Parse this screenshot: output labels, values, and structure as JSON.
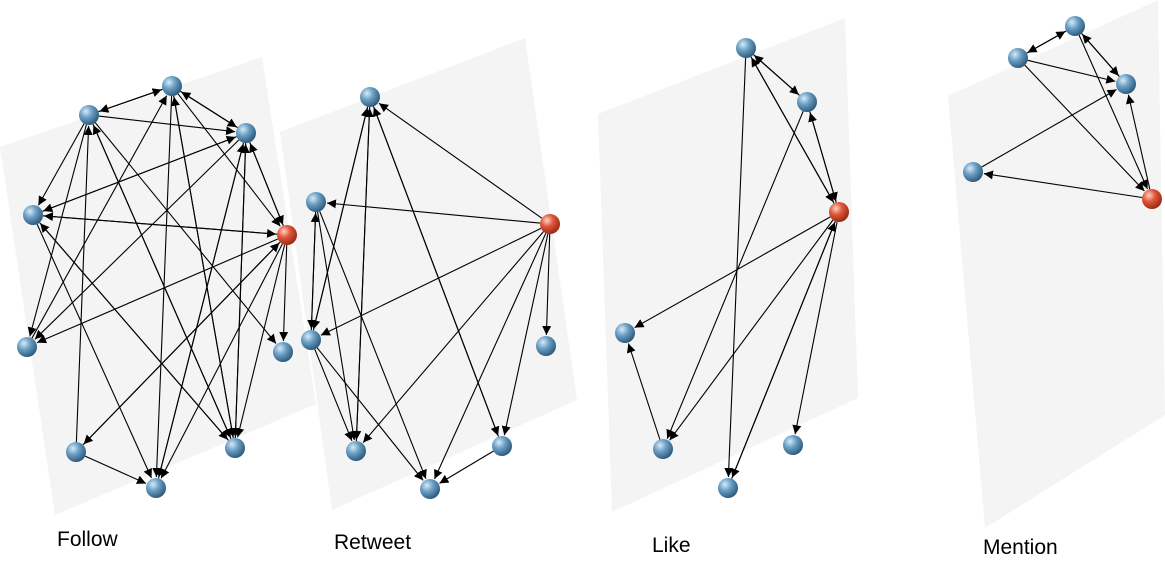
{
  "colors": {
    "regular_node": "#5b8db0",
    "focal_node": "#e0563a",
    "edge": "#000000",
    "plane": "#f4f4f4"
  },
  "panels": [
    {
      "id": "follow",
      "label": "Follow",
      "nodes": [
        {
          "id": "f1"
        },
        {
          "id": "f2"
        },
        {
          "id": "f3"
        },
        {
          "id": "f4"
        },
        {
          "id": "f5",
          "focal": true
        },
        {
          "id": "f6"
        },
        {
          "id": "f7"
        },
        {
          "id": "f8"
        },
        {
          "id": "f9"
        },
        {
          "id": "f10"
        }
      ],
      "edges": [
        [
          "f1",
          "f2"
        ],
        [
          "f1",
          "f3"
        ],
        [
          "f1",
          "f4"
        ],
        [
          "f1",
          "f7"
        ],
        [
          "f1",
          "f9"
        ],
        [
          "f1",
          "f6"
        ],
        [
          "f2",
          "f3"
        ],
        [
          "f2",
          "f10"
        ],
        [
          "f2",
          "f9"
        ],
        [
          "f2",
          "f1"
        ],
        [
          "f2",
          "f5"
        ],
        [
          "f3",
          "f4"
        ],
        [
          "f3",
          "f6"
        ],
        [
          "f3",
          "f9"
        ],
        [
          "f3",
          "f10"
        ],
        [
          "f3",
          "f2"
        ],
        [
          "f3",
          "f5"
        ],
        [
          "f4",
          "f3"
        ],
        [
          "f4",
          "f5"
        ],
        [
          "f4",
          "f10"
        ],
        [
          "f4",
          "f9"
        ],
        [
          "f5",
          "f6"
        ],
        [
          "f5",
          "f3"
        ],
        [
          "f5",
          "f7"
        ],
        [
          "f5",
          "f9"
        ],
        [
          "f5",
          "f10"
        ],
        [
          "f5",
          "f8"
        ],
        [
          "f5",
          "f4"
        ],
        [
          "f8",
          "f5"
        ],
        [
          "f8",
          "f10"
        ],
        [
          "f8",
          "f1"
        ],
        [
          "f9",
          "f4"
        ],
        [
          "f9",
          "f1"
        ],
        [
          "f9",
          "f2"
        ],
        [
          "f9",
          "f3"
        ],
        [
          "f6",
          "f2"
        ],
        [
          "f10",
          "f3"
        ]
      ]
    },
    {
      "id": "retweet",
      "label": "Retweet",
      "nodes": [
        {
          "id": "r1"
        },
        {
          "id": "r2"
        },
        {
          "id": "r3",
          "focal": true
        },
        {
          "id": "r4"
        },
        {
          "id": "r5"
        },
        {
          "id": "r6"
        },
        {
          "id": "r7"
        },
        {
          "id": "r8"
        }
      ],
      "edges": [
        [
          "r3",
          "r1"
        ],
        [
          "r3",
          "r2"
        ],
        [
          "r3",
          "r4"
        ],
        [
          "r3",
          "r5"
        ],
        [
          "r3",
          "r6"
        ],
        [
          "r3",
          "r7"
        ],
        [
          "r3",
          "r8"
        ],
        [
          "r1",
          "r6"
        ],
        [
          "r1",
          "r7"
        ],
        [
          "r1",
          "r4"
        ],
        [
          "r2",
          "r6"
        ],
        [
          "r2",
          "r8"
        ],
        [
          "r2",
          "r4"
        ],
        [
          "r4",
          "r2"
        ],
        [
          "r4",
          "r1"
        ],
        [
          "r4",
          "r6"
        ],
        [
          "r4",
          "r8"
        ],
        [
          "r6",
          "r1"
        ],
        [
          "r7",
          "r8"
        ],
        [
          "r7",
          "r1"
        ]
      ]
    },
    {
      "id": "like",
      "label": "Like",
      "nodes": [
        {
          "id": "l1"
        },
        {
          "id": "l2"
        },
        {
          "id": "l3",
          "focal": true
        },
        {
          "id": "l4"
        },
        {
          "id": "l5"
        },
        {
          "id": "l6"
        },
        {
          "id": "l7"
        }
      ],
      "edges": [
        [
          "l1",
          "l2"
        ],
        [
          "l1",
          "l3"
        ],
        [
          "l1",
          "l7"
        ],
        [
          "l2",
          "l3"
        ],
        [
          "l2",
          "l5"
        ],
        [
          "l2",
          "l1"
        ],
        [
          "l3",
          "l2"
        ],
        [
          "l3",
          "l4"
        ],
        [
          "l3",
          "l5"
        ],
        [
          "l3",
          "l6"
        ],
        [
          "l3",
          "l7"
        ],
        [
          "l3",
          "l1"
        ],
        [
          "l5",
          "l4"
        ],
        [
          "l7",
          "l3"
        ]
      ]
    },
    {
      "id": "mention",
      "label": "Mention",
      "nodes": [
        {
          "id": "m1"
        },
        {
          "id": "m2"
        },
        {
          "id": "m3"
        },
        {
          "id": "m4"
        },
        {
          "id": "m5",
          "focal": true
        }
      ],
      "edges": [
        [
          "m2",
          "m1"
        ],
        [
          "m1",
          "m2"
        ],
        [
          "m2",
          "m3"
        ],
        [
          "m2",
          "m5"
        ],
        [
          "m1",
          "m3"
        ],
        [
          "m1",
          "m5"
        ],
        [
          "m5",
          "m3"
        ],
        [
          "m3",
          "m1"
        ],
        [
          "m5",
          "m4"
        ],
        [
          "m4",
          "m3"
        ]
      ]
    }
  ]
}
